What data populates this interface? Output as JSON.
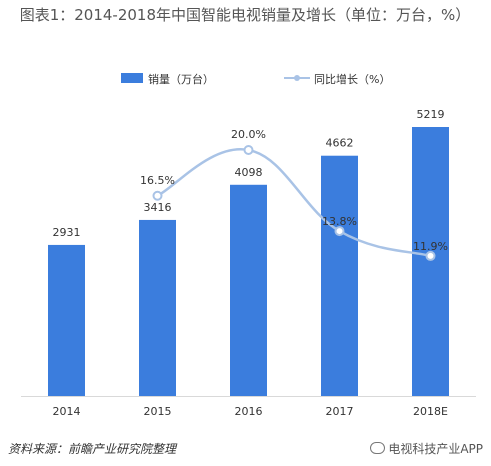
{
  "title": "图表1：2014-2018年中国智能电视销量及增长（单位：万台，%）",
  "legend": {
    "bar_label": "销量（万台）",
    "line_label": "同比增长（%）",
    "bar_color": "#3b7ddd",
    "line_color": "#a9c3e6"
  },
  "source": "资料来源：前瞻产业研究院整理",
  "brand": "电视科技产业APP",
  "chart_data": {
    "type": "bar",
    "categories": [
      "2014",
      "2015",
      "2016",
      "2017",
      "2018E"
    ],
    "series": [
      {
        "name": "销量（万台）",
        "type": "bar",
        "values": [
          2931,
          3416,
          4098,
          4662,
          5219
        ],
        "labels": [
          "2931",
          "3416",
          "4098",
          "4662",
          "5219"
        ]
      },
      {
        "name": "同比增长（%）",
        "type": "line",
        "values": [
          null,
          16.5,
          20.0,
          13.8,
          11.9
        ],
        "labels": [
          "",
          "16.5%",
          "20.0%",
          "13.8%",
          "11.9%"
        ]
      }
    ]
  }
}
